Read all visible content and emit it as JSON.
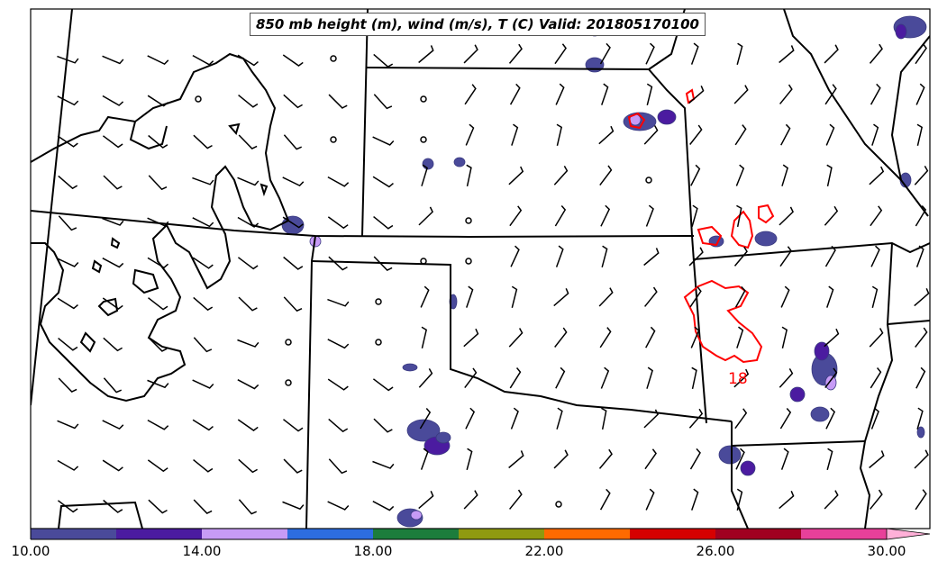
{
  "title": "850 mb height (m), wind (m/s), T (C) Valid: 201805170100",
  "contour_label": "18",
  "colorbar": {
    "ticks": [
      "10.00",
      "14.00",
      "18.00",
      "22.00",
      "26.00",
      "30.00"
    ],
    "colors": [
      "#4a4a9a",
      "#4b1ba0",
      "#c79bf6",
      "#2d6de0",
      "#1c7d3c",
      "#8f9a10",
      "#ff6a00",
      "#d60000",
      "#a00020",
      "#e8409a",
      "#ffb0d8"
    ]
  },
  "map_colors": {
    "state_lines": "#000000",
    "height_contour": "#000000",
    "temperature_contour": "#ff0000",
    "wind_barbs": "#000000"
  }
}
